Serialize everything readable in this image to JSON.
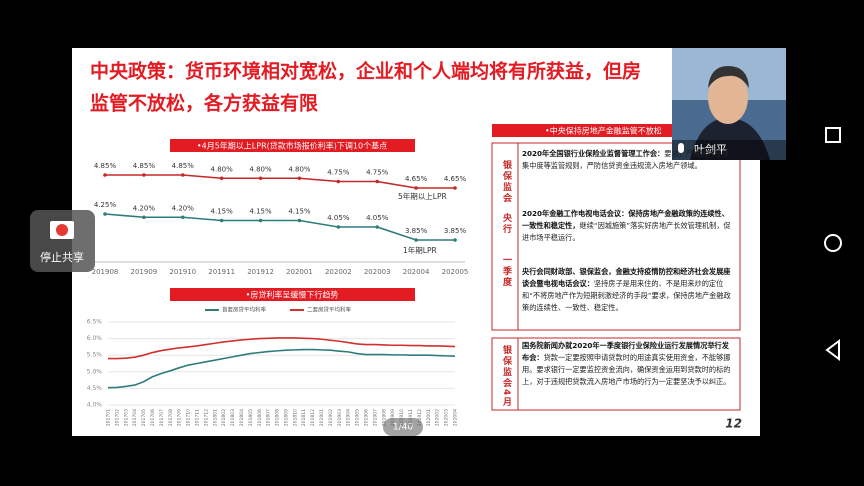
{
  "slide": {
    "title_lines": [
      "中央政策：货币环境相对宽松，企业和个人端均将有所获益，但房",
      "监管不放松，各方获益有限"
    ],
    "page_number": "12"
  },
  "chart_data": [
    {
      "type": "line",
      "title": "•4月5年期以上LPR(贷款市场报价利率)下调10个基点",
      "categories": [
        "201908",
        "201909",
        "201910",
        "201911",
        "201912",
        "202001",
        "202002",
        "202003",
        "202004",
        "202005"
      ],
      "series": [
        {
          "name": "5年期以上LPR",
          "color": "#c62828",
          "values": [
            4.85,
            4.85,
            4.85,
            4.8,
            4.8,
            4.8,
            4.75,
            4.75,
            4.65,
            4.65
          ],
          "value_labels": [
            "4.85%",
            "4.85%",
            "4.85%",
            "4.80%",
            "4.80%",
            "4.80%",
            "4.75%",
            "4.75%",
            "4.65%",
            "4.65%"
          ]
        },
        {
          "name": "1年期LPR",
          "color": "#2e7d7b",
          "values": [
            4.25,
            4.2,
            4.2,
            4.15,
            4.15,
            4.15,
            4.05,
            4.05,
            3.85,
            3.85
          ],
          "value_labels": [
            "4.25%",
            "4.20%",
            "4.20%",
            "4.15%",
            "4.15%",
            "4.15%",
            "4.05%",
            "4.05%",
            "3.85%",
            "3.85%"
          ]
        }
      ]
    },
    {
      "type": "line",
      "title": "•房贷利率呈缓慢下行趋势",
      "categories": [
        "201701",
        "201702",
        "201703",
        "201704",
        "201705",
        "201706",
        "201707",
        "201708",
        "201709",
        "201710",
        "201711",
        "201712",
        "201801",
        "201802",
        "201803",
        "201804",
        "201805",
        "201806",
        "201807",
        "201808",
        "201809",
        "201810",
        "201811",
        "201812",
        "201901",
        "201902",
        "201903",
        "201904",
        "201905",
        "201906",
        "201907",
        "201908",
        "201909",
        "201910",
        "201911",
        "201912",
        "202001",
        "202002",
        "202003",
        "202004"
      ],
      "series": [
        {
          "name": "首套房贷平均利率",
          "color": "#2e7d7b",
          "values": [
            4.52,
            4.53,
            4.56,
            4.6,
            4.7,
            4.85,
            4.95,
            5.03,
            5.12,
            5.2,
            5.25,
            5.3,
            5.35,
            5.4,
            5.45,
            5.5,
            5.55,
            5.58,
            5.61,
            5.63,
            5.65,
            5.66,
            5.67,
            5.67,
            5.66,
            5.65,
            5.62,
            5.6,
            5.55,
            5.52,
            5.52,
            5.52,
            5.51,
            5.51,
            5.5,
            5.5,
            5.5,
            5.49,
            5.48,
            5.47
          ]
        },
        {
          "name": "二套房贷平均利率",
          "color": "#d32f2f",
          "values": [
            5.4,
            5.4,
            5.41,
            5.44,
            5.5,
            5.58,
            5.64,
            5.68,
            5.72,
            5.75,
            5.78,
            5.82,
            5.86,
            5.9,
            5.93,
            5.96,
            5.98,
            6.0,
            6.01,
            6.02,
            6.02,
            6.02,
            6.01,
            6.0,
            5.98,
            5.95,
            5.92,
            5.88,
            5.84,
            5.82,
            5.82,
            5.81,
            5.8,
            5.8,
            5.79,
            5.79,
            5.78,
            5.78,
            5.77,
            5.76
          ]
        }
      ],
      "ylim": [
        4.0,
        6.5
      ],
      "yticks": [
        {
          "value": 4.0,
          "label": "4.0%"
        },
        {
          "value": 4.5,
          "label": "4.5%"
        },
        {
          "value": 5.0,
          "label": "5.0%"
        },
        {
          "value": 5.5,
          "label": "5.5%"
        },
        {
          "value": 6.0,
          "label": "6.0%"
        },
        {
          "value": 6.5,
          "label": "6.5%"
        }
      ],
      "legend": "top"
    }
  ],
  "policy_panel": {
    "header": "•中央保持房地产金融监管不放松",
    "sources": [
      "银保监会",
      "央行",
      "一季度",
      "银保监会4月"
    ],
    "items": [
      {
        "lead": "2020年全国银行业保险业监督管理工作会：",
        "body": "要求，严格执行授信集中度等监管规则，严防信贷资金违规流入房地产领域。"
      },
      {
        "lead": "2020年金融工作电视电话会议：保持房地产金融政策的连续性、一致性和稳定性，",
        "body": "继续“因城施策”落实好房地产长效管理机制，促进市场平稳运行。"
      },
      {
        "lead": "央行会同财政部、银保监会，金融支持疫情防控和经济社会发展座谈会暨电视电话会议：",
        "body": "坚持房子是用来住的、不是用来炒的定位和“不将房地产作为短期刺激经济的手段”要求，保持房地产金融政策的连续性、一致性、稳定性。"
      },
      {
        "lead": "国务院新闻办就2020年一季度银行业保险业运行发展情况举行发布会：",
        "body": "贷款一定要按照申请贷款时的用途真实使用资金，不能够挪用。要求银行一定要监控资金流向，确保资金运用到贷款时的标的上，对于违规把贷款流入房地产市场的行为一定要坚决予以纠正。"
      }
    ]
  },
  "viewer": {
    "page_indicator": "1/40",
    "speaker_name": "叶剑平",
    "stop_share": "停止共享"
  }
}
